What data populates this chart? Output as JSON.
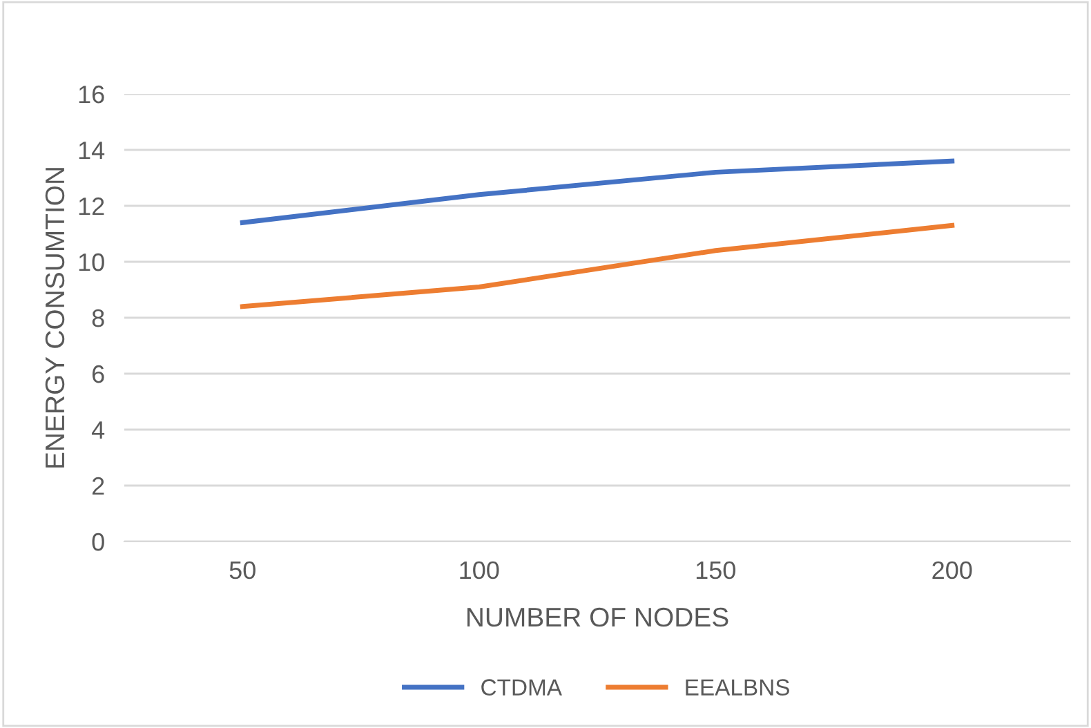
{
  "chart_data": {
    "type": "line",
    "xlabel": "NUMBER OF NODES",
    "ylabel": "ENERGY CONSUMTION",
    "categories": [
      "50",
      "100",
      "150",
      "200"
    ],
    "series": [
      {
        "name": "CTDMA",
        "color": "#4472c4",
        "values": [
          11.4,
          12.4,
          13.2,
          13.6
        ]
      },
      {
        "name": "EEALBNS",
        "color": "#ed7d31",
        "values": [
          8.4,
          9.1,
          10.4,
          11.3
        ]
      }
    ],
    "ylim": [
      0,
      16
    ],
    "yticks": [
      0,
      2,
      4,
      6,
      8,
      10,
      12,
      14,
      16
    ],
    "grid": "y",
    "legend": "bottom",
    "marker": "none",
    "line_style": "solid"
  }
}
